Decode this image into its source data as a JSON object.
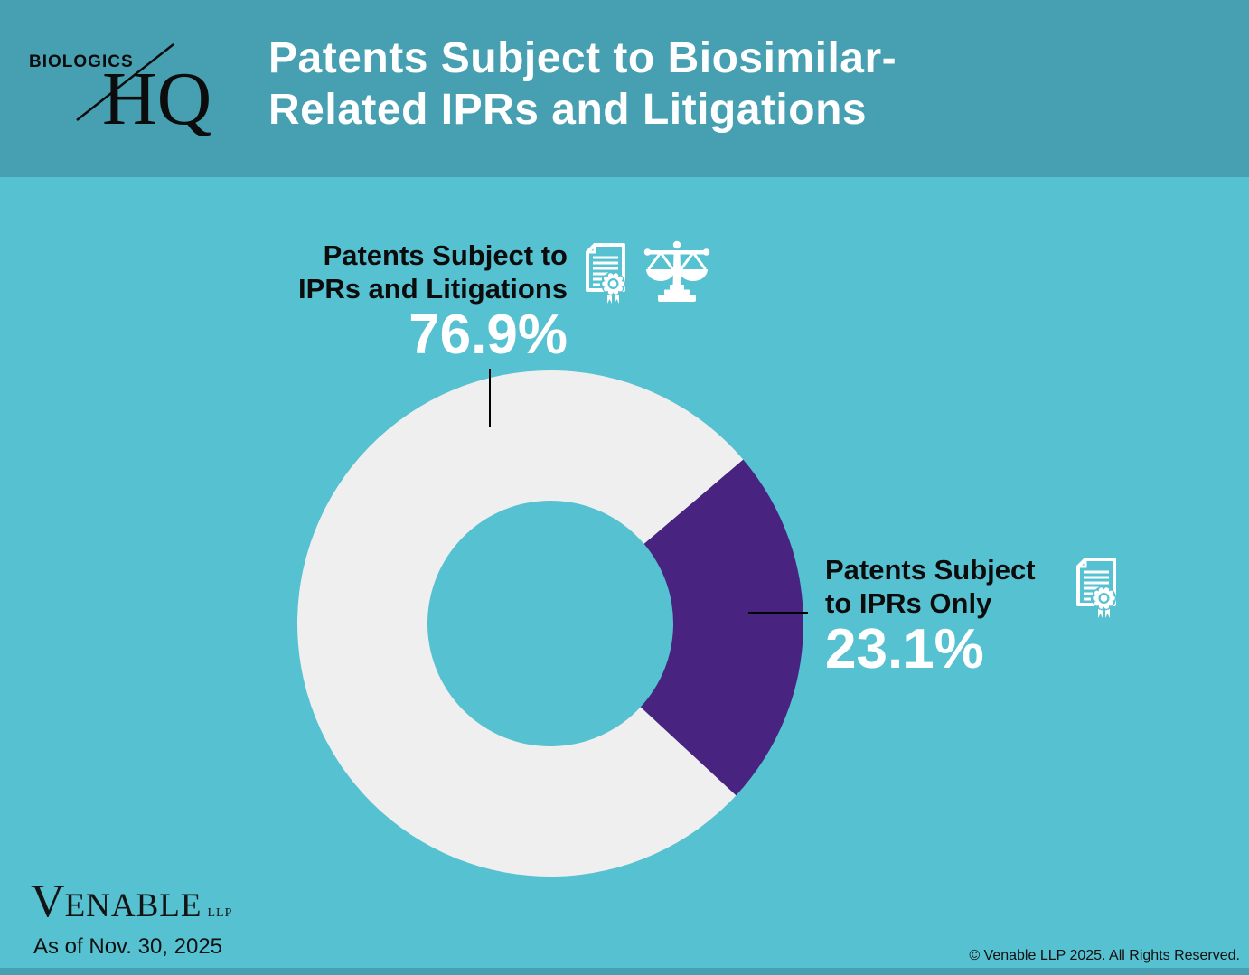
{
  "colors": {
    "background_teal": "#56C1D0",
    "band_teal": "#46A0B1",
    "slice_white": "#F0EFEF",
    "slice_purple": "#492380",
    "leader_line": "#000000",
    "title_text": "#FFFFFF",
    "label_text": "#0C0C0C"
  },
  "header": {
    "logo_top": "BIOLOGICS",
    "logo_bottom": "HQ",
    "title_line1": "Patents Subject to Biosimilar-",
    "title_line2": "Related IPRs and Litigations"
  },
  "chart_data": {
    "type": "pie",
    "subtype": "donut",
    "title": "Patents Subject to Biosimilar-Related IPRs and Litigations",
    "slices": [
      {
        "label": "Patents Subject to IPRs and Litigations",
        "value": 76.9,
        "display": "76.9%",
        "color": "#F0EFEF"
      },
      {
        "label": "Patents Subject to IPRs Only",
        "value": 23.1,
        "display": "23.1%",
        "color": "#492380"
      }
    ],
    "rotation_deg": 42.8,
    "outer_radius": 280,
    "inner_radius": 136,
    "legend_position": "callouts"
  },
  "callouts": {
    "left": {
      "line1": "Patents Subject to",
      "line2": "IPRs and Litigations",
      "value": "76.9%",
      "icons": [
        "certificate-icon",
        "scales-icon"
      ]
    },
    "right": {
      "line1": "Patents Subject",
      "line2": "to IPRs Only",
      "value": "23.1%",
      "icons": [
        "certificate-icon"
      ]
    }
  },
  "footer": {
    "brand_initial": "V",
    "brand_rest": "ENABLE",
    "brand_suffix": "LLP",
    "as_of": "As of Nov. 30, 2025",
    "copyright": "© Venable LLP 2025. All Rights Reserved."
  }
}
